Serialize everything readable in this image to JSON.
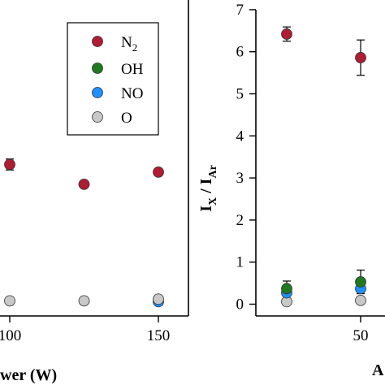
{
  "chart_data": [
    {
      "type": "scatter",
      "xlabel": "wer (W)",
      "x_tick_labels": [
        "100",
        "150"
      ],
      "x_ticks": [
        100,
        150
      ],
      "xlim": [
        97,
        157
      ],
      "ylim": [
        0,
        7
      ],
      "series": [
        {
          "name": "N",
          "name_subscript": "2",
          "color": "#b01c33",
          "points": [
            {
              "x": 100,
              "y": 3.32,
              "err": 0.13
            },
            {
              "x": 125,
              "y": 2.85,
              "err": 0
            },
            {
              "x": 150,
              "y": 3.14,
              "err": 0
            }
          ]
        },
        {
          "name": "OH",
          "color": "#1f7a1f",
          "points": []
        },
        {
          "name": "NO",
          "color": "#1e90ff",
          "points": [
            {
              "x": 150,
              "y": 0.06,
              "err": 0
            }
          ]
        },
        {
          "name": "O",
          "color": "#c8c8c8",
          "points": [
            {
              "x": 100,
              "y": 0.08,
              "err": 0
            },
            {
              "x": 125,
              "y": 0.08,
              "err": 0
            },
            {
              "x": 150,
              "y": 0.12,
              "err": 0
            }
          ]
        }
      ],
      "legend_position": "top-right"
    },
    {
      "type": "scatter",
      "ylabel_main": "I",
      "ylabel_sub1": "X",
      "ylabel_mid": " / I",
      "ylabel_sub2": "Ar",
      "xlabel_partial": "A",
      "y_ticks": [
        0,
        1,
        2,
        3,
        4,
        5,
        6,
        7
      ],
      "y_tick_labels": [
        "0",
        "1",
        "2",
        "3",
        "4",
        "5",
        "6",
        "7"
      ],
      "x_ticks": [
        50
      ],
      "x_tick_labels": [
        "50"
      ],
      "ylim": [
        0,
        7
      ],
      "xlim": [
        0,
        57
      ],
      "series": [
        {
          "name": "N2",
          "color": "#b01c33",
          "points": [
            {
              "x": 25,
              "y": 6.42,
              "err": 0.17
            },
            {
              "x": 50,
              "y": 5.86,
              "err": 0.42
            }
          ]
        },
        {
          "name": "OH",
          "color": "#1f7a1f",
          "points": [
            {
              "x": 25,
              "y": 0.37,
              "err": 0.18
            },
            {
              "x": 50,
              "y": 0.53,
              "err": 0.28
            }
          ]
        },
        {
          "name": "NO",
          "color": "#1e90ff",
          "points": [
            {
              "x": 25,
              "y": 0.27,
              "err": 0
            },
            {
              "x": 50,
              "y": 0.37,
              "err": 0
            }
          ]
        },
        {
          "name": "O",
          "color": "#c8c8c8",
          "points": [
            {
              "x": 25,
              "y": 0.06,
              "err": 0
            },
            {
              "x": 50,
              "y": 0.09,
              "err": 0
            }
          ]
        }
      ]
    }
  ]
}
